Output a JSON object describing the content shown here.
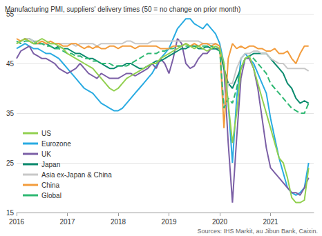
{
  "chart_data": {
    "type": "line",
    "title": "Manufacturing PMI, suppliers' delivery times (50 = no change on prior month)",
    "annotations": [
      "Sources: IHS Markit, au Jibun Bank, Caixin."
    ],
    "x": [
      2016,
      2016.083,
      2016.167,
      2016.25,
      2016.333,
      2016.417,
      2016.5,
      2016.583,
      2016.667,
      2016.75,
      2016.833,
      2016.917,
      2017,
      2017.083,
      2017.167,
      2017.25,
      2017.333,
      2017.417,
      2017.5,
      2017.583,
      2017.667,
      2017.75,
      2017.833,
      2017.917,
      2018,
      2018.083,
      2018.167,
      2018.25,
      2018.333,
      2018.417,
      2018.5,
      2018.583,
      2018.667,
      2018.75,
      2018.833,
      2018.917,
      2019,
      2019.083,
      2019.167,
      2019.25,
      2019.333,
      2019.417,
      2019.5,
      2019.583,
      2019.667,
      2019.75,
      2019.833,
      2019.917,
      2020,
      2020.083,
      2020.167,
      2020.25,
      2020.333,
      2020.417,
      2020.5,
      2020.583,
      2020.667,
      2020.75,
      2020.833,
      2020.917,
      2021,
      2021.083,
      2021.167,
      2021.25,
      2021.333,
      2021.417,
      2021.5,
      2021.583,
      2021.667,
      2021.75
    ],
    "xlim": [
      2016,
      2021.85
    ],
    "xticks": [
      2016,
      2017,
      2018,
      2019,
      2020,
      2021
    ],
    "ylim": [
      15,
      55
    ],
    "yticks": [
      15,
      25,
      35,
      45,
      55
    ],
    "grid": true,
    "legend": "lower left",
    "series": [
      {
        "name": "US",
        "color": "#92d050",
        "line_style": "solid",
        "values": [
          49,
          49.5,
          50,
          49.5,
          49,
          49.5,
          50,
          49.5,
          49,
          49,
          48.5,
          48,
          47,
          46.5,
          46,
          45.5,
          45,
          44.5,
          44,
          43,
          42,
          41,
          40,
          39.5,
          40,
          41,
          42,
          42.5,
          43,
          43.5,
          44,
          44.5,
          45,
          45,
          46,
          46.5,
          47,
          47.5,
          48,
          48.5,
          49,
          48.5,
          48,
          48.5,
          48,
          47.5,
          48,
          48.5,
          48,
          45,
          37,
          29,
          35,
          44,
          46,
          46.5,
          44,
          41,
          38,
          35,
          32,
          29,
          26,
          25,
          22,
          18,
          17,
          17,
          17.5,
          24
        ]
      },
      {
        "name": "Eurozone",
        "color": "#29abe2",
        "line_style": "solid",
        "values": [
          48,
          48.5,
          49,
          48.5,
          48,
          48,
          47.5,
          47,
          47,
          46.5,
          46,
          45,
          44,
          43,
          42,
          41,
          40,
          39.5,
          39,
          38,
          37,
          36.5,
          36,
          35.5,
          35.5,
          36,
          37,
          38,
          39,
          40,
          41,
          42,
          43,
          44.5,
          46,
          47,
          48,
          50,
          52,
          53,
          54,
          54,
          53,
          52.5,
          52,
          53,
          52,
          51,
          49,
          45,
          37,
          25,
          38,
          46,
          47,
          46,
          45,
          43,
          41,
          39,
          34,
          30,
          26,
          23,
          20,
          19,
          18.5,
          19,
          20,
          25
        ]
      },
      {
        "name": "UK",
        "color": "#7b5fa6",
        "line_style": "solid",
        "values": [
          46,
          47.5,
          48,
          48.5,
          47,
          46.5,
          46,
          46,
          45.5,
          45,
          44,
          43.5,
          43,
          43.5,
          44,
          45,
          44,
          43,
          42.5,
          42,
          43,
          42.5,
          42,
          42,
          42,
          42.5,
          43,
          43,
          42.5,
          43,
          43.5,
          44,
          45,
          44,
          46,
          45,
          43,
          46,
          50,
          49,
          45,
          44,
          44.5,
          46,
          47,
          47,
          48,
          48,
          48,
          44,
          29,
          17,
          30,
          42,
          46,
          46,
          44,
          40,
          34,
          28,
          24,
          23,
          22,
          21,
          20,
          19,
          19,
          18.5,
          20,
          22
        ]
      },
      {
        "name": "Japan",
        "color": "#0a8a6e",
        "line_style": "solid",
        "values": [
          49,
          49.5,
          50,
          50,
          49.5,
          49,
          49,
          49,
          48.5,
          48,
          48.5,
          48,
          48,
          47.5,
          47,
          47,
          46.5,
          46,
          46,
          45.5,
          45,
          44.5,
          44,
          44,
          44.5,
          44.5,
          45,
          45,
          44.5,
          44,
          44,
          44.5,
          45,
          45.5,
          45.5,
          46,
          46.5,
          47,
          47.5,
          48,
          48,
          48.5,
          48.5,
          48,
          48,
          48.5,
          48,
          48,
          47.5,
          44,
          41,
          40,
          42,
          44,
          46,
          46.5,
          47,
          47,
          47,
          47,
          46,
          45,
          44,
          43,
          41,
          40,
          38,
          37,
          37.5,
          37
        ]
      },
      {
        "name": "Asia ex-Japan & China",
        "color": "#c8c8c8",
        "line_style": "solid",
        "values": [
          49,
          49.5,
          50,
          50,
          49.5,
          49.5,
          49,
          49,
          49,
          49,
          49,
          49,
          49,
          49,
          48.5,
          49,
          49,
          49,
          49,
          48.5,
          49,
          49,
          49,
          49,
          49,
          49,
          49.5,
          49.5,
          49,
          49,
          49,
          49,
          49.5,
          49.5,
          49.5,
          49.5,
          49.5,
          49.5,
          49.5,
          49.5,
          49.5,
          49.5,
          49.5,
          49.5,
          49,
          49,
          49,
          49,
          48.5,
          36,
          41,
          41,
          44,
          46,
          47,
          47,
          47.5,
          47.5,
          47,
          47,
          46,
          45.5,
          45,
          45,
          44,
          44,
          44,
          44,
          44,
          43.5
        ]
      },
      {
        "name": "China",
        "color": "#f39c3c",
        "line_style": "solid",
        "values": [
          50,
          49.5,
          50,
          49.5,
          49,
          49,
          49.5,
          49,
          49.5,
          49,
          49,
          48.5,
          48.5,
          49,
          49,
          48.5,
          48,
          48.5,
          48,
          48.5,
          48,
          48,
          48.5,
          48.5,
          48,
          48.5,
          48.5,
          48.5,
          48,
          48.5,
          48.5,
          48.5,
          48.5,
          48.5,
          48,
          48,
          48,
          48.5,
          48.5,
          48.5,
          49,
          48.5,
          49,
          48.5,
          49,
          49,
          48.5,
          49,
          48.5,
          32,
          46,
          49,
          48,
          48.5,
          48,
          48.5,
          48.5,
          48,
          48,
          47.5,
          47.5,
          48,
          47,
          47,
          47.5,
          46,
          45,
          47,
          48.5,
          48.5
        ]
      },
      {
        "name": "Global",
        "color": "#2eb872",
        "line_style": "dashed",
        "values": [
          49.5,
          49,
          49.5,
          49.5,
          49,
          49,
          49,
          48.5,
          48.5,
          48,
          48,
          47.5,
          47,
          47,
          46.5,
          46.5,
          46,
          46,
          45.5,
          45.5,
          45,
          45,
          45,
          44.5,
          44.5,
          44.5,
          44.5,
          45,
          45.5,
          46,
          46.5,
          47,
          47,
          47,
          47.5,
          47.5,
          48,
          48,
          48.5,
          48.5,
          48.5,
          48.5,
          48.5,
          48.5,
          48.5,
          48.5,
          48.5,
          48,
          47.5,
          36,
          38,
          37,
          40,
          44,
          46,
          46.5,
          46,
          45,
          44,
          43,
          41,
          40,
          39,
          38,
          37,
          36,
          35.5,
          35,
          35,
          37
        ]
      }
    ]
  }
}
